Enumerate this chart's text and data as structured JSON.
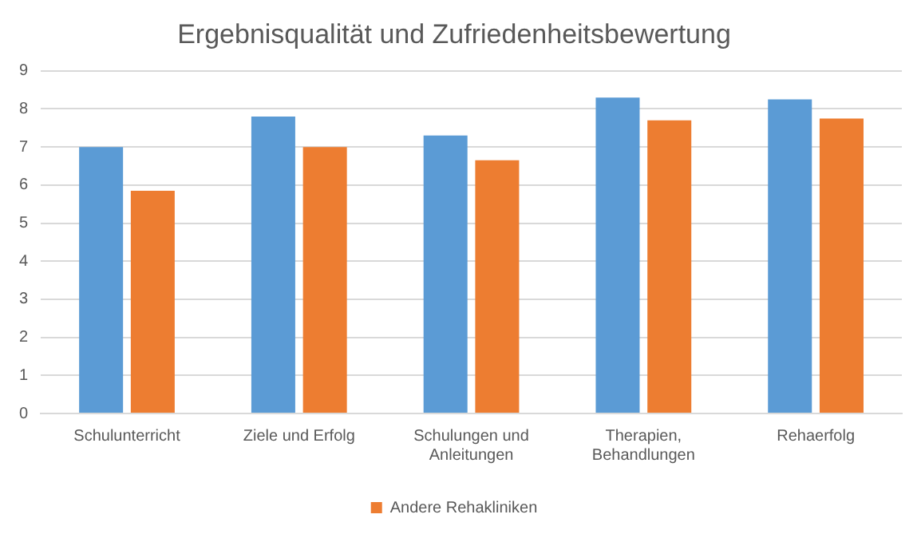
{
  "chart_data": {
    "type": "bar",
    "title": "Ergebnisqualität und Zufriedenheitsbewertung",
    "categories": [
      "Schulunterricht",
      "Ziele und Erfolg",
      "Schulungen und Anleitungen",
      "Therapien, Behandlungen",
      "Rehaerfolg"
    ],
    "series": [
      {
        "color": "#5b9bd5",
        "values": [
          7.0,
          7.8,
          7.3,
          8.3,
          8.25
        ]
      },
      {
        "name": "Andere Rehakliniken",
        "color": "#ed7d31",
        "values": [
          5.85,
          7.0,
          6.65,
          7.7,
          7.75
        ]
      }
    ],
    "ylim": [
      0,
      9
    ],
    "yticks": [
      0,
      1,
      2,
      3,
      4,
      5,
      6,
      7,
      8,
      9
    ],
    "grid": "y",
    "legend": "bottom"
  }
}
